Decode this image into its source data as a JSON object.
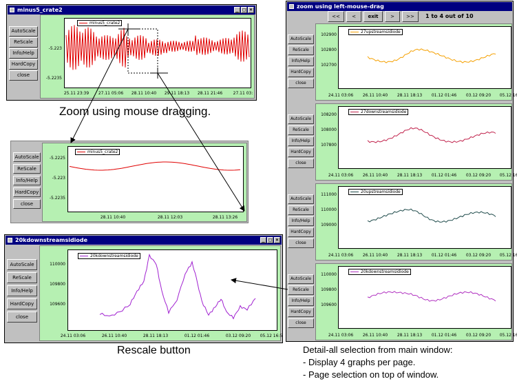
{
  "windows": {
    "main": {
      "title": "minus5_crate2",
      "buttons": [
        "AutoScale",
        "ReScale",
        "Info/Help",
        "HardCopy",
        "close"
      ],
      "legend": "minus5_crate2",
      "yticks": [
        "-5.223",
        "-5.2235"
      ],
      "xticks": [
        "25.11 23:39",
        "27.11 05:06",
        "28.11 10:40",
        "29.11 18:13",
        "28.11 21:46",
        "27.11 03:"
      ]
    },
    "zoomed": {
      "buttons": [
        "AutoScale",
        "ReScale",
        "Info/Help",
        "HardCopy",
        "close"
      ],
      "legend": "minus5_crate2",
      "yticks": [
        "-5.2225",
        "-5.223",
        "-5.2235"
      ],
      "xticks": [
        "28.11 10:40",
        "28.11 12:03",
        "28.11 13:26"
      ]
    },
    "rescale": {
      "title": "20kdownstreamsidiode",
      "buttons": [
        "AutoScale",
        "ReScale",
        "Info/Help",
        "HardCopy",
        "close"
      ],
      "legend": "20kdownstreamsidiode",
      "yticks": [
        "110000",
        "109800",
        "109600"
      ],
      "xticks": [
        "24.11 03:06",
        "26.11 10:40",
        "28.11 18:13",
        "01.12 01:46",
        "03.12 09:20",
        "05.12 16:5"
      ]
    },
    "multi": {
      "title": "zoom using left-mouse-drag",
      "nav": {
        "first": "<<",
        "prev": "<",
        "exit": "exit",
        "next": ">",
        "last": ">>",
        "status": "1 to 4 out of 10"
      },
      "buttons": [
        "AutoScale",
        "ReScale",
        "Info/Help",
        "HardCopy",
        "close"
      ],
      "xticks": [
        "24.11 03:06",
        "26.11 10:40",
        "28.11 18:13",
        "01.12 01:46",
        "03.12 09:20",
        "05.12 16:5"
      ],
      "panels": [
        {
          "legend": "27upstreamsidiode",
          "color": "#f5a000",
          "yticks": [
            "102900",
            "102800",
            "102700"
          ]
        },
        {
          "legend": "27downstreamsidiode",
          "color": "#c0204a",
          "yticks": [
            "108200",
            "108000",
            "107800"
          ]
        },
        {
          "legend": "20upstreamsidiode",
          "color": "#1e4a4a",
          "yticks": [
            "111000",
            "110000",
            "109000"
          ]
        },
        {
          "legend": "20kdownstreamsidiode",
          "color": "#b030c0",
          "yticks": [
            "110000",
            "109800",
            "109600"
          ]
        }
      ]
    }
  },
  "captions": {
    "zoom": "Zoom using mouse dragging.",
    "rescale": "Rescale button",
    "detail_title": "Detail-all selection from main window:",
    "detail_line1": "- Display 4 graphs per page.",
    "detail_line2": "- Page selection on top of window."
  },
  "colors": {
    "titlebar": "#000080",
    "plot_background": "#b6f0b2",
    "main_trace": "#e00000",
    "rescale_trace": "#a020d0"
  }
}
